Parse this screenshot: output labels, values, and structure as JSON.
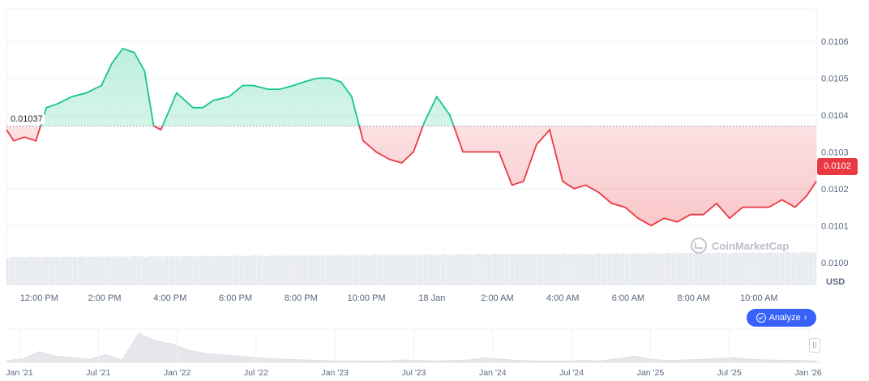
{
  "chart_data": {
    "type": "area",
    "title": "",
    "currency": "USD",
    "reference_value": 0.01037,
    "reference_label": "0.01037",
    "current_price_label": "0.0102",
    "ylim": [
      0.00996,
      0.01069
    ],
    "y_ticks": [
      0.01,
      0.0101,
      0.0102,
      0.0103,
      0.0104,
      0.0105,
      0.0106
    ],
    "y_tick_labels": [
      "0.0100",
      "0.0101",
      "0.0102",
      "0.0103",
      "0.0104",
      "0.0105",
      "0.0106"
    ],
    "x_hours": [
      0,
      0.22,
      0.55,
      0.9,
      1.22,
      1.55,
      2.0,
      2.44,
      2.9,
      3.22,
      3.55,
      3.9,
      4.22,
      4.5,
      4.72,
      5.2,
      5.7,
      6.0,
      6.33,
      6.8,
      7.22,
      7.55,
      8.0,
      8.35,
      8.77,
      9.1,
      9.5,
      9.88,
      10.22,
      10.55,
      10.9,
      11.3,
      11.7,
      12.08,
      12.44,
      12.77,
      13.15,
      13.55,
      13.95,
      14.3,
      14.66,
      15.05,
      15.45,
      15.8,
      16.2,
      16.6,
      17.0,
      17.35,
      17.7,
      18.1,
      18.5,
      18.9,
      19.3,
      19.7,
      20.1,
      20.5,
      20.9,
      21.3,
      21.7,
      22.1,
      22.5,
      22.9,
      23.3,
      23.7,
      24.1,
      24.45,
      24.75
    ],
    "values": [
      0.01036,
      0.01033,
      0.01034,
      0.01033,
      0.01042,
      0.01043,
      0.01045,
      0.01046,
      0.01048,
      0.01054,
      0.01058,
      0.01057,
      0.01052,
      0.01037,
      0.01036,
      0.01046,
      0.01042,
      0.01042,
      0.01044,
      0.01045,
      0.01048,
      0.01048,
      0.01047,
      0.01047,
      0.01048,
      0.01049,
      0.0105,
      0.0105,
      0.01049,
      0.01045,
      0.01033,
      0.0103,
      0.01028,
      0.01027,
      0.0103,
      0.01038,
      0.01045,
      0.0104,
      0.0103,
      0.0103,
      0.0103,
      0.0103,
      0.01021,
      0.01022,
      0.01032,
      0.01036,
      0.01022,
      0.0102,
      0.01021,
      0.01019,
      0.01016,
      0.01015,
      0.01012,
      0.0101,
      0.01012,
      0.01011,
      0.01013,
      0.01013,
      0.01016,
      0.01012,
      0.01015,
      0.01015,
      0.01015,
      0.01017,
      0.01015,
      0.01018,
      0.01022
    ],
    "x_ticks": [
      {
        "hour": 1,
        "label": "12:00 PM"
      },
      {
        "hour": 3,
        "label": "2:00 PM"
      },
      {
        "hour": 5,
        "label": "4:00 PM"
      },
      {
        "hour": 7,
        "label": "6:00 PM"
      },
      {
        "hour": 9,
        "label": "8:00 PM"
      },
      {
        "hour": 11,
        "label": "10:00 PM"
      },
      {
        "hour": 13,
        "label": "18 Jan"
      },
      {
        "hour": 15,
        "label": "2:00 AM"
      },
      {
        "hour": 17,
        "label": "4:00 AM"
      },
      {
        "hour": 19,
        "label": "6:00 AM"
      },
      {
        "hour": 21,
        "label": "8:00 AM"
      },
      {
        "hour": 23,
        "label": "10:00 AM"
      }
    ],
    "navigator_labels": [
      "Jan '21",
      "Jul '21",
      "Jan '22",
      "Jul '22",
      "Jan '23",
      "Jul '23",
      "Jan '24",
      "Jul '24",
      "Jan '25",
      "Jul '25",
      "Jan '26"
    ],
    "navigator_values": [
      0.05,
      0.12,
      0.35,
      0.2,
      0.15,
      0.1,
      0.25,
      0.08,
      0.95,
      0.7,
      0.6,
      0.4,
      0.3,
      0.25,
      0.2,
      0.15,
      0.12,
      0.1,
      0.08,
      0.06,
      0.05,
      0.05,
      0.04,
      0.05,
      0.08,
      0.06,
      0.05,
      0.06,
      0.08,
      0.15,
      0.1,
      0.06,
      0.05,
      0.04,
      0.05,
      0.06,
      0.05,
      0.12,
      0.2,
      0.1,
      0.06,
      0.08,
      0.1,
      0.12,
      0.15,
      0.1,
      0.08,
      0.07,
      0.06,
      0.05
    ],
    "colors": {
      "up": "#16c784",
      "down": "#ea3943",
      "up_fill": "#16c784",
      "down_fill": "#ea3943",
      "volume": "#e6e9ee",
      "navigator": "#e5e7ea",
      "grid": "#eff2f5"
    }
  },
  "analyze_label": "Analyze",
  "watermark_text": "CoinMarketCap"
}
